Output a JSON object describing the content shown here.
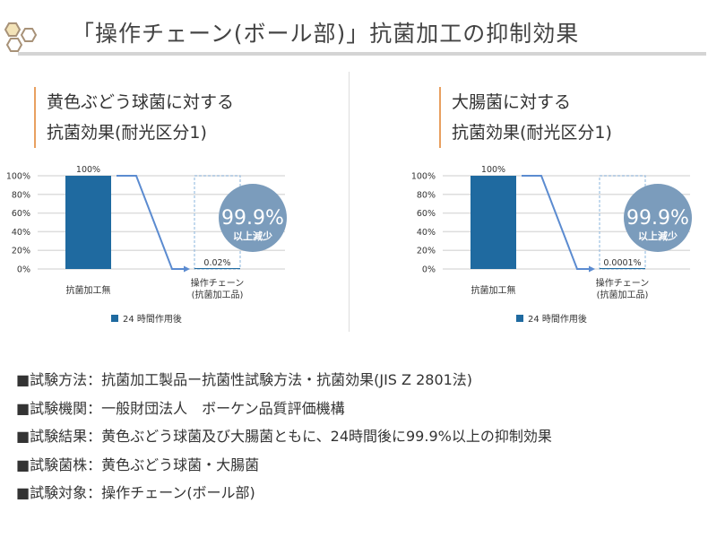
{
  "title": "「操作チェーン(ボール部)」抗菌加工の抑制効果",
  "icon": "hexagon-cluster-icon",
  "colors": {
    "bar": "#1f6aa0",
    "arrow": "#5b8bd0",
    "badge": "#7b9cbc",
    "accent": "#e8a060"
  },
  "chart_data": [
    {
      "type": "bar",
      "title_lines": [
        "黄色ぶどう球菌に対する",
        "抗菌効果(耐光区分1)"
      ],
      "categories": [
        "抗菌加工無",
        "操作チェーン\n(抗菌加工品)"
      ],
      "values": [
        100,
        0.02
      ],
      "data_labels": [
        "100%",
        "0.02%"
      ],
      "yticks": [
        "0%",
        "20%",
        "40%",
        "60%",
        "80%",
        "100%"
      ],
      "ylim": [
        0,
        100
      ],
      "grid": true,
      "legend": "24 時間作用後",
      "legend_position": "bottom",
      "badge": {
        "value": "99.9%",
        "text": "以上減少"
      }
    },
    {
      "type": "bar",
      "title_lines": [
        "大腸菌に対する",
        "抗菌効果(耐光区分1)"
      ],
      "categories": [
        "抗菌加工無",
        "操作チェーン\n(抗菌加工品)"
      ],
      "values": [
        100,
        0.0001
      ],
      "data_labels": [
        "100%",
        "0.0001%"
      ],
      "yticks": [
        "0%",
        "20%",
        "40%",
        "60%",
        "80%",
        "100%"
      ],
      "ylim": [
        0,
        100
      ],
      "grid": true,
      "legend": "24 時間作用後",
      "legend_position": "bottom",
      "badge": {
        "value": "99.9%",
        "text": "以上減少"
      }
    }
  ],
  "notes": [
    "■試験方法：抗菌加工製品ー抗菌性試験方法・抗菌効果(JIS Z 2801法)",
    "■試験機関：一般財団法人　ボーケン品質評価機構",
    "■試験結果：黄色ぶどう球菌及び大腸菌ともに、24時間後に99.9%以上の抑制効果",
    "■試験菌株：黄色ぶどう球菌・大腸菌",
    "■試験対象：操作チェーン(ボール部)"
  ]
}
